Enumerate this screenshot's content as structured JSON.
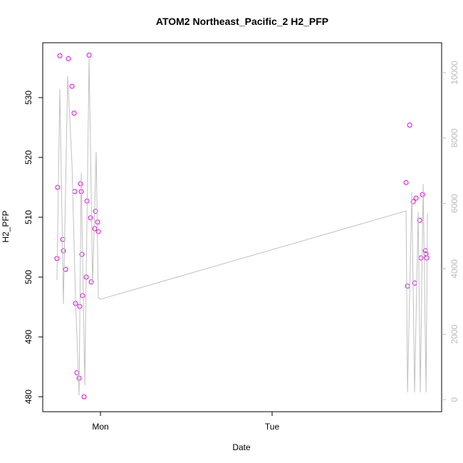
{
  "chart_data": {
    "type": "scatter",
    "title": "ATOM2 Northeast_Pacific_2 H2_PFP",
    "xlabel": "Date",
    "ylabel": "H2_PFP",
    "xlim": [
      -8.07,
      47.7
    ],
    "xticks": [
      {
        "value": 0,
        "label": "Mon"
      },
      {
        "value": 24,
        "label": "Tue"
      }
    ],
    "ylim": [
      477.5,
      539.17
    ],
    "yticks": [
      480,
      490,
      500,
      510,
      520,
      530
    ],
    "y2lim": [
      -370,
      10915
    ],
    "y2ticks": [
      0,
      2000,
      4000,
      6000,
      8000,
      10000
    ],
    "series": [
      {
        "type": "scatter",
        "color": "#e000e0",
        "x": [
          -6.08,
          -5.98,
          -5.68,
          -5.28,
          -5.18,
          -4.88,
          -4.48,
          -3.98,
          -3.69,
          -3.59,
          -3.49,
          -3.29,
          -2.99,
          -2.89,
          -2.79,
          -2.69,
          -2.59,
          -2.49,
          -2.29,
          -1.99,
          -1.89,
          -1.59,
          -1.39,
          -1.29,
          -0.8,
          -0.7,
          -0.4,
          -0.3,
          42.73,
          42.93,
          43.23,
          43.73,
          43.92,
          44.12,
          44.62,
          44.82,
          45.02,
          45.42,
          45.52,
          45.62
        ],
        "values": [
          503.1,
          515.0,
          537.0,
          506.3,
          504.4,
          501.3,
          536.5,
          531.9,
          527.4,
          514.3,
          495.6,
          484.0,
          483.1,
          495.1,
          515.6,
          514.3,
          503.8,
          496.9,
          480.0,
          500.0,
          512.7,
          537.1,
          509.9,
          499.2,
          508.1,
          511.0,
          509.2,
          507.6,
          515.8,
          498.5,
          525.4,
          512.6,
          499.0,
          513.2,
          509.5,
          503.2,
          513.8,
          504.4,
          503.9,
          503.2
        ]
      },
      {
        "type": "line",
        "axis": "y2",
        "color": "#c0c0c0",
        "x": [
          -6.08,
          -5.68,
          -5.18,
          -4.58,
          -3.98,
          -3.49,
          -2.99,
          -2.69,
          -2.19,
          -1.59,
          -1.1,
          -0.6,
          -0.3,
          0,
          42.73,
          42.93,
          43.53,
          43.92,
          44.42,
          44.72,
          45.12,
          45.52,
          45.72
        ],
        "values": [
          3660,
          9500,
          2920,
          9890,
          7210,
          3120,
          130,
          6930,
          440,
          10440,
          3510,
          7580,
          3120,
          3070,
          5770,
          220,
          6340,
          220,
          5730,
          220,
          6600,
          220,
          5690
        ]
      }
    ]
  }
}
